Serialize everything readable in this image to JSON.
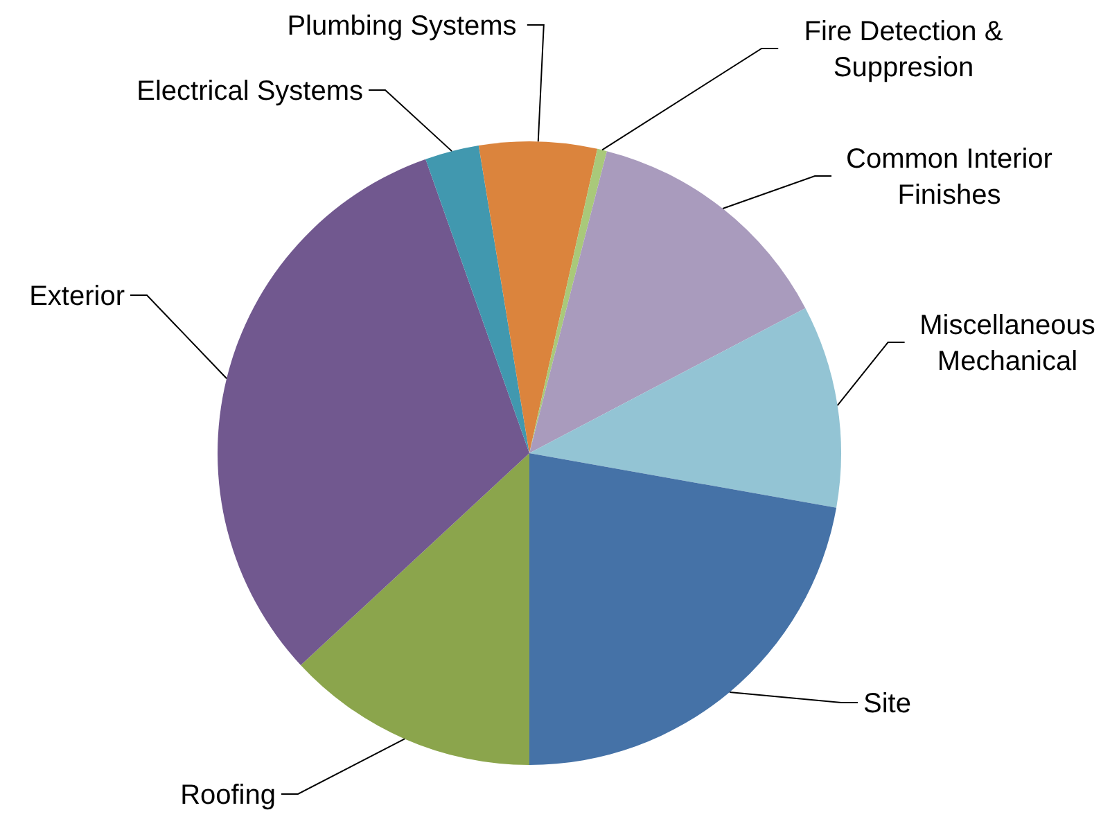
{
  "chart_data": {
    "type": "pie",
    "categories": [
      "Roofing",
      "Exterior",
      "Electrical Systems",
      "Plumbing Systems",
      "Fire Detection & Suppresion",
      "Common Interior Finishes",
      "Miscellaneous Mechanical",
      "Site"
    ],
    "values": [
      13.1,
      31.5,
      2.8,
      6.1,
      0.5,
      13.3,
      10.5,
      22.2
    ],
    "colors": [
      "#8ba54c",
      "#71588f",
      "#4198af",
      "#db843d",
      "#a9c97a",
      "#a99bbd",
      "#93c4d4",
      "#4572a7"
    ],
    "legend": false
  }
}
